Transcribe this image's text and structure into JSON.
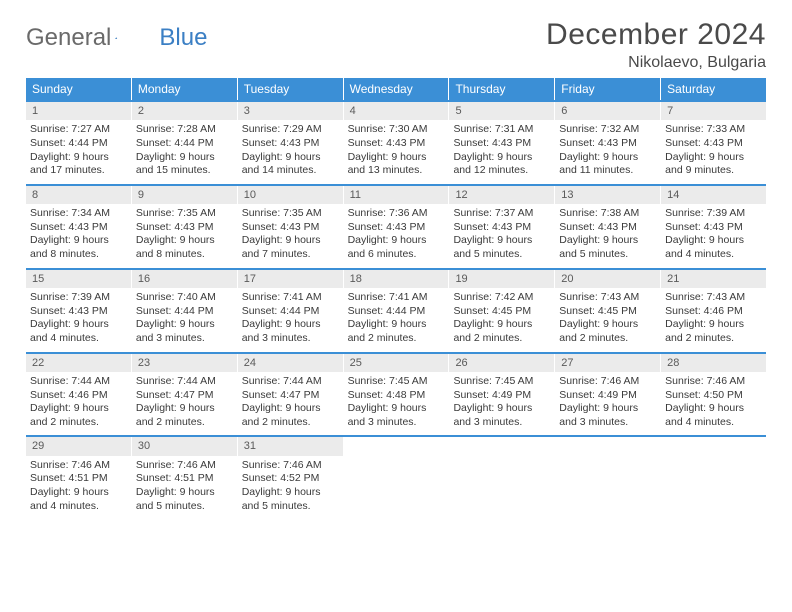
{
  "brand": {
    "word1": "General",
    "word2": "Blue"
  },
  "title": "December 2024",
  "location": "Nikolaevo, Bulgaria",
  "colors": {
    "header_bg": "#3b8fd6",
    "header_text": "#ffffff",
    "daynum_bg": "#ebebeb",
    "text": "#3a3a3a",
    "week_border": "#3b8fd6"
  },
  "weekdays": [
    "Sunday",
    "Monday",
    "Tuesday",
    "Wednesday",
    "Thursday",
    "Friday",
    "Saturday"
  ],
  "days": [
    {
      "n": 1,
      "sunrise": "7:27 AM",
      "sunset": "4:44 PM",
      "daylight": "9 hours and 17 minutes."
    },
    {
      "n": 2,
      "sunrise": "7:28 AM",
      "sunset": "4:44 PM",
      "daylight": "9 hours and 15 minutes."
    },
    {
      "n": 3,
      "sunrise": "7:29 AM",
      "sunset": "4:43 PM",
      "daylight": "9 hours and 14 minutes."
    },
    {
      "n": 4,
      "sunrise": "7:30 AM",
      "sunset": "4:43 PM",
      "daylight": "9 hours and 13 minutes."
    },
    {
      "n": 5,
      "sunrise": "7:31 AM",
      "sunset": "4:43 PM",
      "daylight": "9 hours and 12 minutes."
    },
    {
      "n": 6,
      "sunrise": "7:32 AM",
      "sunset": "4:43 PM",
      "daylight": "9 hours and 11 minutes."
    },
    {
      "n": 7,
      "sunrise": "7:33 AM",
      "sunset": "4:43 PM",
      "daylight": "9 hours and 9 minutes."
    },
    {
      "n": 8,
      "sunrise": "7:34 AM",
      "sunset": "4:43 PM",
      "daylight": "9 hours and 8 minutes."
    },
    {
      "n": 9,
      "sunrise": "7:35 AM",
      "sunset": "4:43 PM",
      "daylight": "9 hours and 8 minutes."
    },
    {
      "n": 10,
      "sunrise": "7:35 AM",
      "sunset": "4:43 PM",
      "daylight": "9 hours and 7 minutes."
    },
    {
      "n": 11,
      "sunrise": "7:36 AM",
      "sunset": "4:43 PM",
      "daylight": "9 hours and 6 minutes."
    },
    {
      "n": 12,
      "sunrise": "7:37 AM",
      "sunset": "4:43 PM",
      "daylight": "9 hours and 5 minutes."
    },
    {
      "n": 13,
      "sunrise": "7:38 AM",
      "sunset": "4:43 PM",
      "daylight": "9 hours and 5 minutes."
    },
    {
      "n": 14,
      "sunrise": "7:39 AM",
      "sunset": "4:43 PM",
      "daylight": "9 hours and 4 minutes."
    },
    {
      "n": 15,
      "sunrise": "7:39 AM",
      "sunset": "4:43 PM",
      "daylight": "9 hours and 4 minutes."
    },
    {
      "n": 16,
      "sunrise": "7:40 AM",
      "sunset": "4:44 PM",
      "daylight": "9 hours and 3 minutes."
    },
    {
      "n": 17,
      "sunrise": "7:41 AM",
      "sunset": "4:44 PM",
      "daylight": "9 hours and 3 minutes."
    },
    {
      "n": 18,
      "sunrise": "7:41 AM",
      "sunset": "4:44 PM",
      "daylight": "9 hours and 2 minutes."
    },
    {
      "n": 19,
      "sunrise": "7:42 AM",
      "sunset": "4:45 PM",
      "daylight": "9 hours and 2 minutes."
    },
    {
      "n": 20,
      "sunrise": "7:43 AM",
      "sunset": "4:45 PM",
      "daylight": "9 hours and 2 minutes."
    },
    {
      "n": 21,
      "sunrise": "7:43 AM",
      "sunset": "4:46 PM",
      "daylight": "9 hours and 2 minutes."
    },
    {
      "n": 22,
      "sunrise": "7:44 AM",
      "sunset": "4:46 PM",
      "daylight": "9 hours and 2 minutes."
    },
    {
      "n": 23,
      "sunrise": "7:44 AM",
      "sunset": "4:47 PM",
      "daylight": "9 hours and 2 minutes."
    },
    {
      "n": 24,
      "sunrise": "7:44 AM",
      "sunset": "4:47 PM",
      "daylight": "9 hours and 2 minutes."
    },
    {
      "n": 25,
      "sunrise": "7:45 AM",
      "sunset": "4:48 PM",
      "daylight": "9 hours and 3 minutes."
    },
    {
      "n": 26,
      "sunrise": "7:45 AM",
      "sunset": "4:49 PM",
      "daylight": "9 hours and 3 minutes."
    },
    {
      "n": 27,
      "sunrise": "7:46 AM",
      "sunset": "4:49 PM",
      "daylight": "9 hours and 3 minutes."
    },
    {
      "n": 28,
      "sunrise": "7:46 AM",
      "sunset": "4:50 PM",
      "daylight": "9 hours and 4 minutes."
    },
    {
      "n": 29,
      "sunrise": "7:46 AM",
      "sunset": "4:51 PM",
      "daylight": "9 hours and 4 minutes."
    },
    {
      "n": 30,
      "sunrise": "7:46 AM",
      "sunset": "4:51 PM",
      "daylight": "9 hours and 5 minutes."
    },
    {
      "n": 31,
      "sunrise": "7:46 AM",
      "sunset": "4:52 PM",
      "daylight": "9 hours and 5 minutes."
    }
  ],
  "labels": {
    "sunrise": "Sunrise:",
    "sunset": "Sunset:",
    "daylight": "Daylight:"
  },
  "start_weekday": 0,
  "cells_per_row": 7
}
